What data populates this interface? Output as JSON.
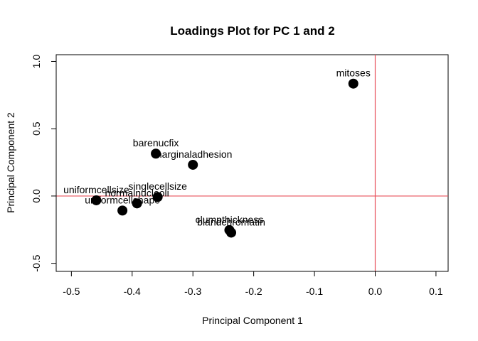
{
  "chart_data": {
    "type": "scatter",
    "title": "Loadings Plot for PC 1 and 2",
    "xlabel": "Principal Component 1",
    "ylabel": "Principal Component 2",
    "xlim": [
      -0.525,
      0.12
    ],
    "ylim": [
      -0.56,
      1.05
    ],
    "xticks": [
      -0.5,
      -0.4,
      -0.3,
      -0.2,
      -0.1,
      0.0,
      0.1
    ],
    "xtick_labels": [
      "-0.5",
      "-0.4",
      "-0.3",
      "-0.2",
      "-0.1",
      "0.0",
      "0.1"
    ],
    "yticks": [
      -0.5,
      0.0,
      0.5,
      1.0
    ],
    "ytick_labels": [
      "-0.5",
      "0.0",
      "0.5",
      "1.0"
    ],
    "grid": false,
    "reference_lines": {
      "x": 0.0,
      "y": 0.0,
      "color": "#e8505b"
    },
    "point_color": "#000000",
    "points": [
      {
        "label": "mitoses",
        "x": -0.036,
        "y": 0.835
      },
      {
        "label": "barenucfix",
        "x": -0.361,
        "y": 0.315
      },
      {
        "label": "marginaladhesion",
        "x": -0.3,
        "y": 0.232
      },
      {
        "label": "singlecellsize",
        "x": -0.358,
        "y": -0.007
      },
      {
        "label": "normalnucleoli",
        "x": -0.392,
        "y": -0.055
      },
      {
        "label": "uniformcellsize",
        "x": -0.459,
        "y": -0.032
      },
      {
        "label": "uniformcellshape",
        "x": -0.416,
        "y": -0.108
      },
      {
        "label": "clumpthickness",
        "x": -0.24,
        "y": -0.253
      },
      {
        "label": "blandchromatin",
        "x": -0.237,
        "y": -0.272
      }
    ]
  }
}
